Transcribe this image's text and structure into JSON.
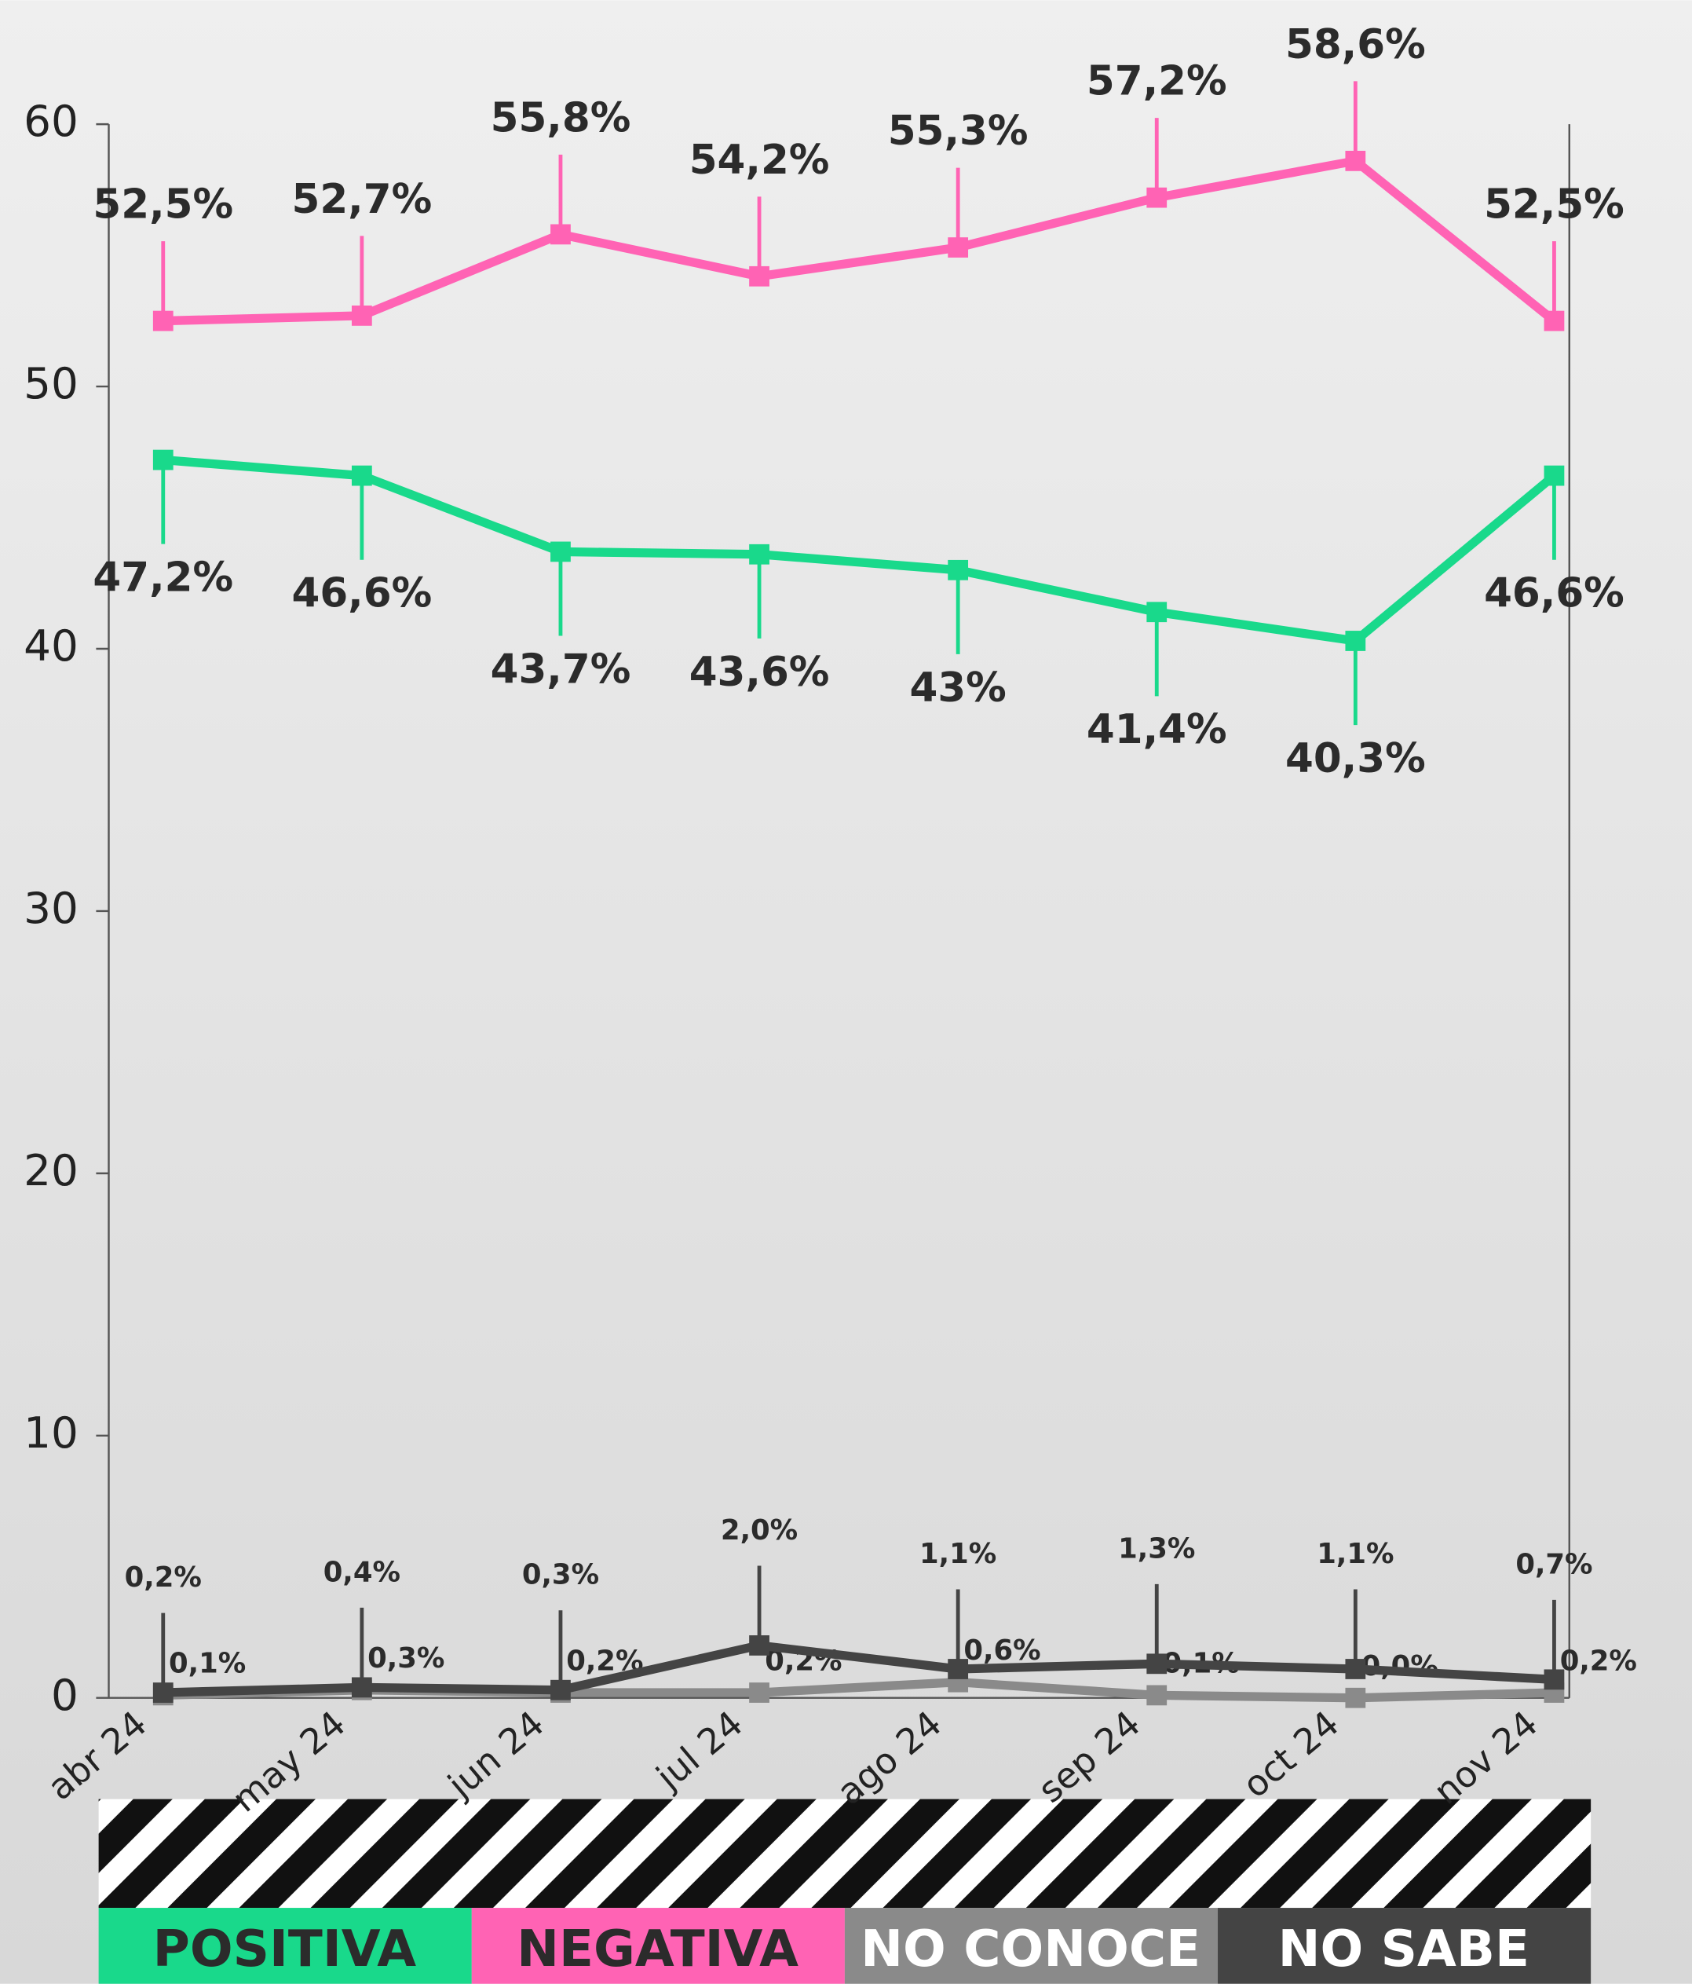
{
  "chart_data": {
    "type": "line",
    "categories": [
      "abr 24",
      "may 24",
      "jun 24",
      "jul 24",
      "ago 24",
      "sep 24",
      "oct 24",
      "nov 24"
    ],
    "ylim": [
      0,
      60
    ],
    "yticks": [
      0,
      10,
      20,
      30,
      40,
      50,
      60
    ],
    "series": [
      {
        "name": "POSITIVA",
        "color": "#19d98b",
        "values": [
          47.2,
          46.6,
          43.7,
          43.6,
          43,
          41.4,
          40.3,
          46.6
        ],
        "value_labels": [
          "47,2%",
          "46,6%",
          "43,7%",
          "43,6%",
          "43%",
          "41,4%",
          "40,3%",
          "46,6%"
        ]
      },
      {
        "name": "NEGATIVA",
        "color": "#ff63b4",
        "values": [
          52.5,
          52.7,
          55.8,
          54.2,
          55.3,
          57.2,
          58.6,
          52.5
        ],
        "value_labels": [
          "52,5%",
          "52,7%",
          "55,8%",
          "54,2%",
          "55,3%",
          "57,2%",
          "58,6%",
          "52,5%"
        ]
      },
      {
        "name": "NO CONOCE",
        "color": "#8a8a8a",
        "values": [
          0.1,
          0.3,
          0.2,
          0.2,
          0.6,
          0.1,
          0.0,
          0.2
        ],
        "value_labels": [
          "0,1%",
          "0,3%",
          "0,2%",
          "0,2%",
          "0,6%",
          "0,1%",
          "0,0%",
          "0,2%"
        ]
      },
      {
        "name": "NO SABE",
        "color": "#444444",
        "values": [
          0.2,
          0.4,
          0.3,
          2.0,
          1.1,
          1.3,
          1.1,
          0.7
        ],
        "value_labels": [
          "0,2%",
          "0,4%",
          "0,3%",
          "2,0%",
          "1,1%",
          "1,3%",
          "1,1%",
          "0,7%"
        ]
      }
    ]
  }
}
